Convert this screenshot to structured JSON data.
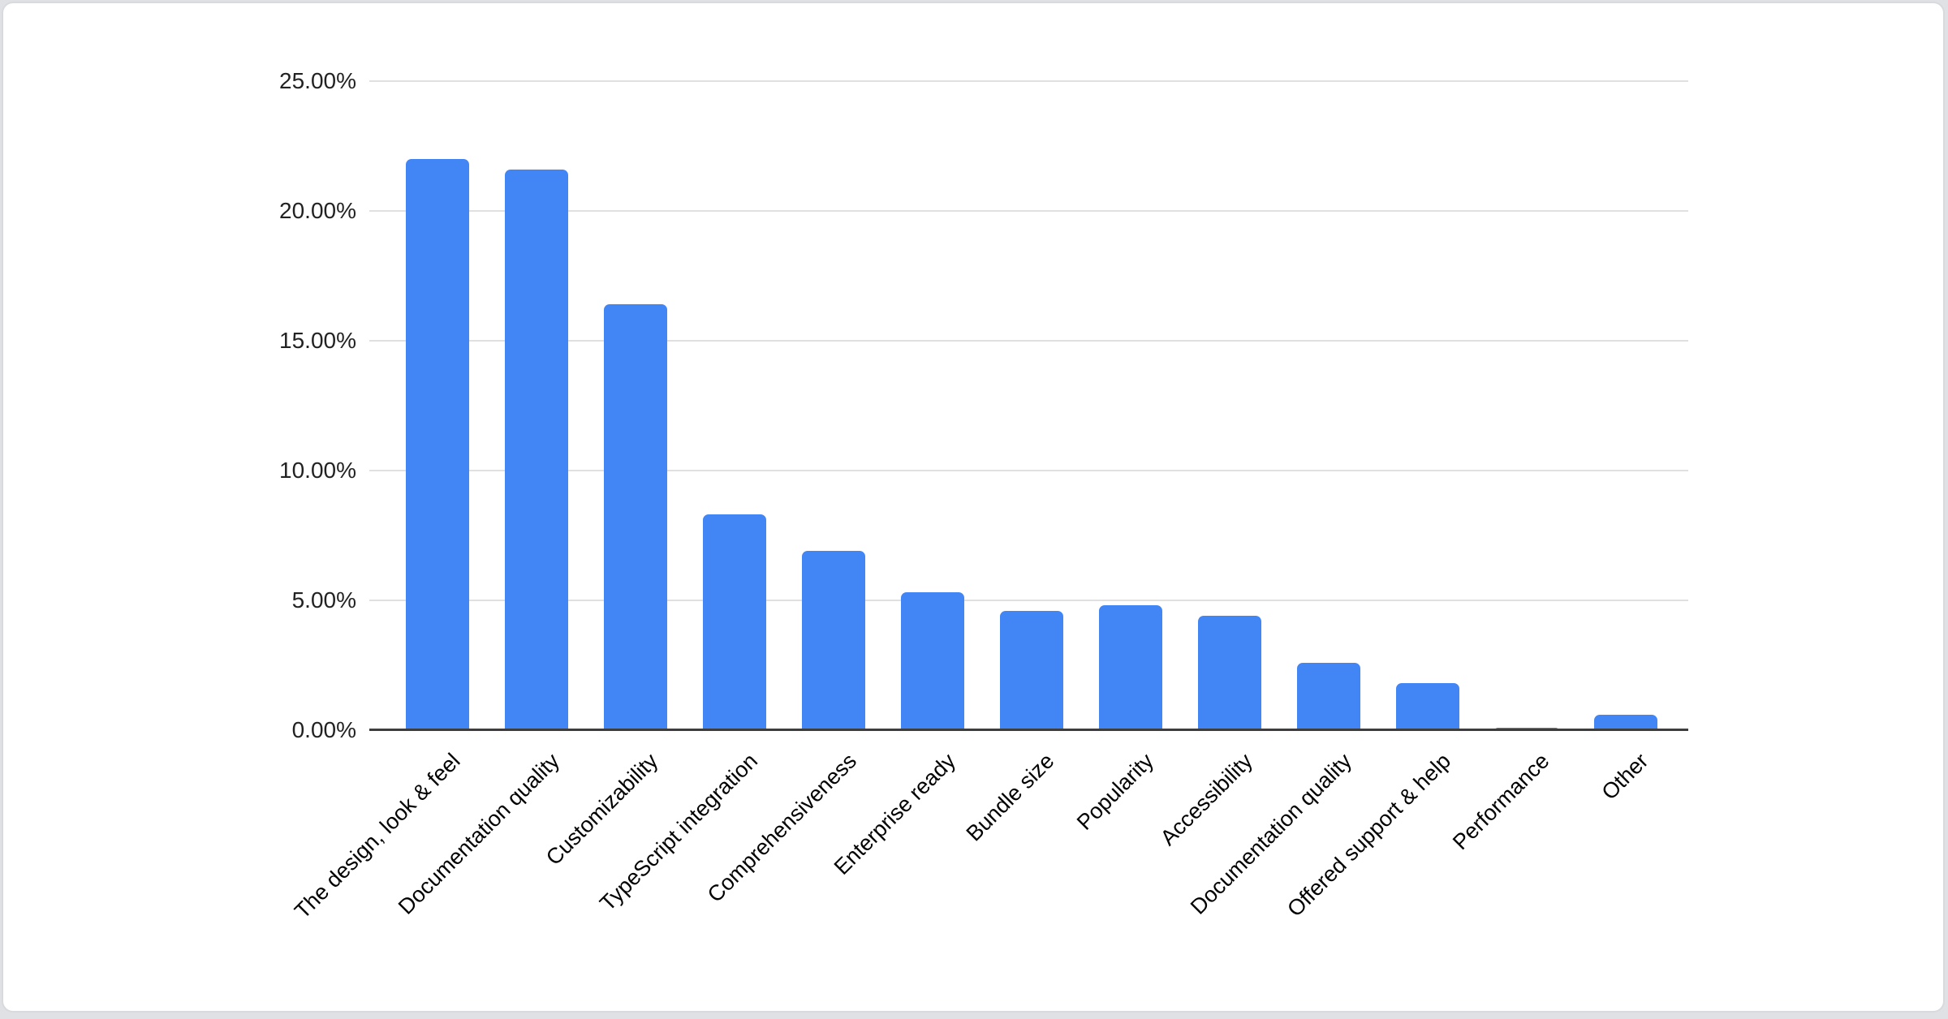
{
  "page": {
    "background_color": "#dfe1e4"
  },
  "card": {
    "background_color": "#ffffff",
    "border_color": "#d8dade"
  },
  "chart_data": {
    "type": "bar",
    "title": "",
    "xlabel": "",
    "ylabel": "",
    "categories": [
      "The design, look & feel",
      "Documentation quality",
      "Customizability",
      "TypeScript integration",
      "Comprehensiveness",
      "Enterprise ready",
      "Bundle size",
      "Popularity",
      "Accessibility",
      "Documentation quality",
      "Offered support & help",
      "Performance",
      "Other"
    ],
    "values": [
      22.0,
      21.6,
      16.4,
      8.3,
      6.9,
      5.3,
      4.6,
      4.8,
      4.4,
      2.6,
      1.8,
      0.1,
      0.6
    ],
    "y_ticks": [
      "25.00%",
      "20.00%",
      "15.00%",
      "10.00%",
      "5.00%",
      "0.00%"
    ],
    "ylim": [
      0,
      25
    ],
    "grid": true,
    "legend_position": "none",
    "bar_color": "#4285f4",
    "gridline_color": "#e0e0e0",
    "axis_line_color": "#3d3d3d",
    "tick_label_color": "#222222",
    "category_label_color": "#000000"
  }
}
